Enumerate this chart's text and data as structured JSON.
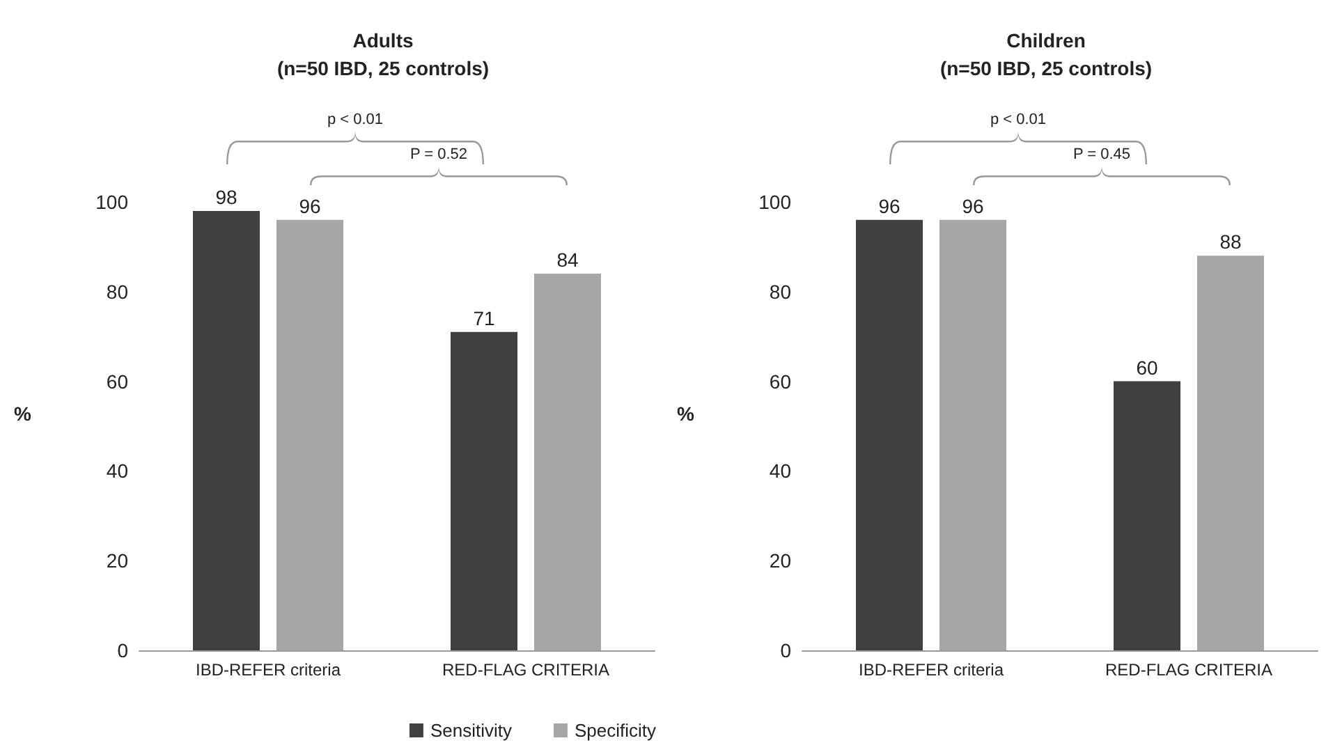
{
  "chart_data": [
    {
      "type": "bar",
      "title": "Adults\n(n=50 IBD, 25 controls)",
      "ylabel": "%",
      "categories": [
        "IBD-REFER criteria",
        "RED-FLAG CRITERIA"
      ],
      "series": [
        {
          "name": "Sensitivity",
          "color": "#404040",
          "values": [
            98,
            71
          ]
        },
        {
          "name": "Specificity",
          "color": "#a6a6a6",
          "values": [
            96,
            84
          ]
        }
      ],
      "ylim": [
        0,
        100
      ],
      "yticks": [
        0,
        20,
        40,
        60,
        80,
        100
      ],
      "data_labels": true,
      "grid": false,
      "legend": "bottom right",
      "annotations": [
        "p < 0.01",
        "P = 0.52"
      ]
    },
    {
      "type": "bar",
      "title": "Children\n(n=50 IBD, 25 controls)",
      "ylabel": "%",
      "categories": [
        "IBD-REFER criteria",
        "RED-FLAG CRITERIA"
      ],
      "series": [
        {
          "color": "#404040",
          "values": [
            96,
            60
          ]
        },
        {
          "color": "#a6a6a6",
          "values": [
            96,
            88
          ]
        }
      ],
      "ylim": [
        0,
        100
      ],
      "yticks": [
        0,
        20,
        40,
        60,
        80,
        100
      ],
      "data_labels": true,
      "grid": false,
      "annotations": [
        "p < 0.01",
        "P = 0.45"
      ]
    }
  ]
}
